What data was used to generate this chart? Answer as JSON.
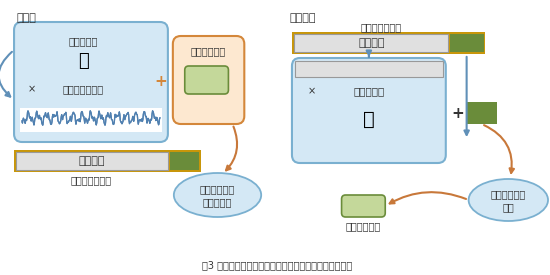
{
  "title": "図3 今回開発した暗号技術の概要＜暗号化と復号処理＞",
  "bg_color": "#ffffff",
  "left_title": "暗号化",
  "right_title": "復号処理",
  "cipher_vec_label": "暗号文ベクトル",
  "public_key_label": "公開鍵行列",
  "noise_vec_label": "ノイズベクトル",
  "plain_vec_label": "平文ベクトル",
  "add_info_label": "付加情報",
  "secret_key_label": "秘密鍵行列",
  "scramble_label1": "スクランブル",
  "scramble_label2": "された平文",
  "descramble_label1": "スクランブル",
  "descramble_label2": "解除",
  "plain_vec_label2": "平文ベクトル",
  "times_sym": "×",
  "plus_sym": "+",
  "left_box_color": "#d4e8f5",
  "left_box_edge": "#7ab0d0",
  "orange_box_color": "#fde8d0",
  "orange_box_edge": "#d4873a",
  "right_main_box_color": "#d4e8f5",
  "right_main_box_edge": "#7ab0d0",
  "gold_border_color": "#c8960a",
  "gray_box_color": "#e0e0e0",
  "gray_box_edge": "#999999",
  "dark_green_color": "#6a8c3a",
  "light_green_color": "#c4d89a",
  "light_green_edge": "#6a8c3a",
  "blue_arrow_color": "#6090b8",
  "orange_arrow_color": "#c8783a",
  "bubble_color": "#d4e8f5",
  "bubble_edge": "#7ab0d0",
  "text_color": "#333333",
  "wave_color": "#5080b0"
}
